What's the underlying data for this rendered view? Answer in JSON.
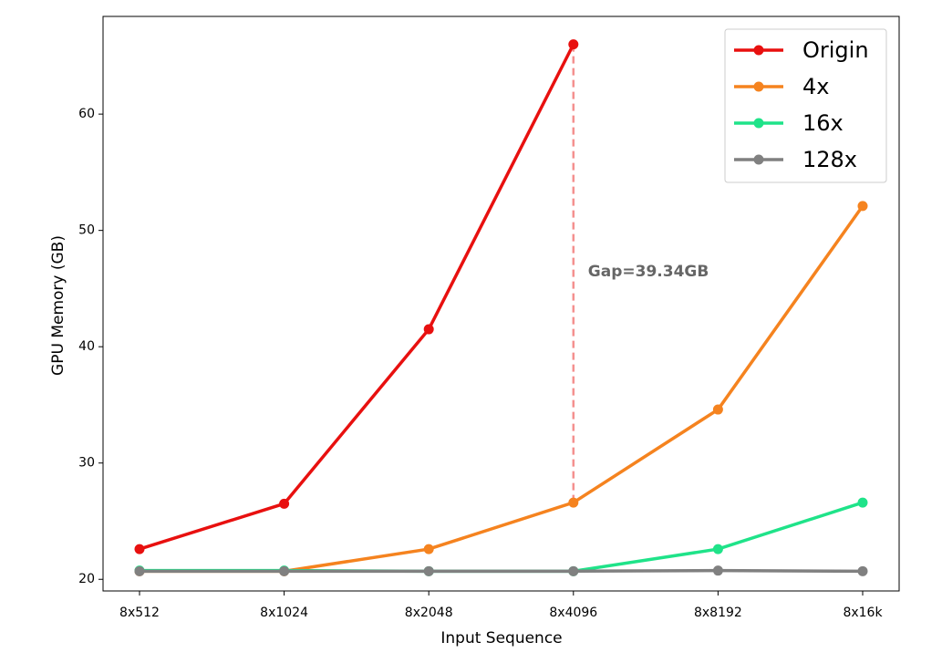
{
  "chart_data": {
    "type": "line",
    "x_label": "Input Sequence",
    "y_label": "GPU Memory (GB)",
    "categories": [
      "8x512",
      "8x1024",
      "8x2048",
      "8x4096",
      "8x8192",
      "8x16k"
    ],
    "series": [
      {
        "name": "Origin",
        "color": "#e8100f",
        "values": [
          22.6,
          26.5,
          41.5,
          66.0,
          null,
          null
        ]
      },
      {
        "name": "4x",
        "color": "#f5831f",
        "values": [
          20.7,
          20.7,
          22.6,
          26.6,
          34.6,
          52.1
        ]
      },
      {
        "name": "16x",
        "color": "#1fe389",
        "values": [
          20.75,
          20.75,
          20.7,
          20.7,
          22.6,
          26.6
        ]
      },
      {
        "name": "128x",
        "color": "#808080",
        "values": [
          20.7,
          20.7,
          20.7,
          20.7,
          20.75,
          20.7
        ]
      }
    ],
    "annotation": "Gap=39.34GB",
    "ylim": [
      19.0,
      68.4
    ],
    "yticks": [
      20,
      30,
      40,
      50,
      60
    ],
    "grid": false,
    "legend": "upper right"
  }
}
